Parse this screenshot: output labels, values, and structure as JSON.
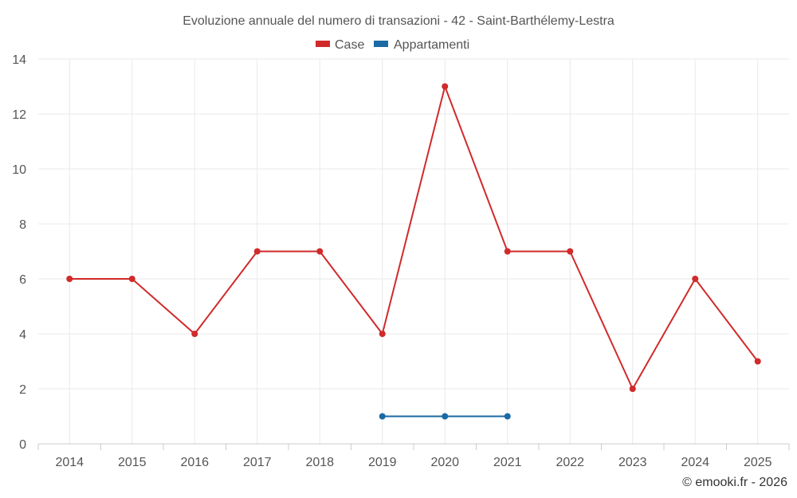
{
  "chart_data": {
    "type": "line",
    "title": "Evoluzione annuale del numero di transazioni - 42 - Saint-Barthélemy-Lestra",
    "categories": [
      "2014",
      "2015",
      "2016",
      "2017",
      "2018",
      "2019",
      "2020",
      "2021",
      "2022",
      "2023",
      "2024",
      "2025"
    ],
    "series": [
      {
        "name": "Case",
        "color": "#d12a2a",
        "values": [
          6,
          6,
          4,
          7,
          7,
          4,
          13,
          7,
          7,
          2,
          6,
          3
        ]
      },
      {
        "name": "Appartamenti",
        "color": "#1a6aa5",
        "values": [
          null,
          null,
          null,
          null,
          null,
          1,
          1,
          1,
          null,
          null,
          null,
          null
        ]
      }
    ],
    "ylim": [
      0,
      14
    ],
    "yticks": [
      0,
      2,
      4,
      6,
      8,
      10,
      12,
      14
    ],
    "xlabel": "",
    "ylabel": "",
    "grid": true,
    "legend_position": "top-center"
  },
  "credit": "© emooki.fr - 2026"
}
